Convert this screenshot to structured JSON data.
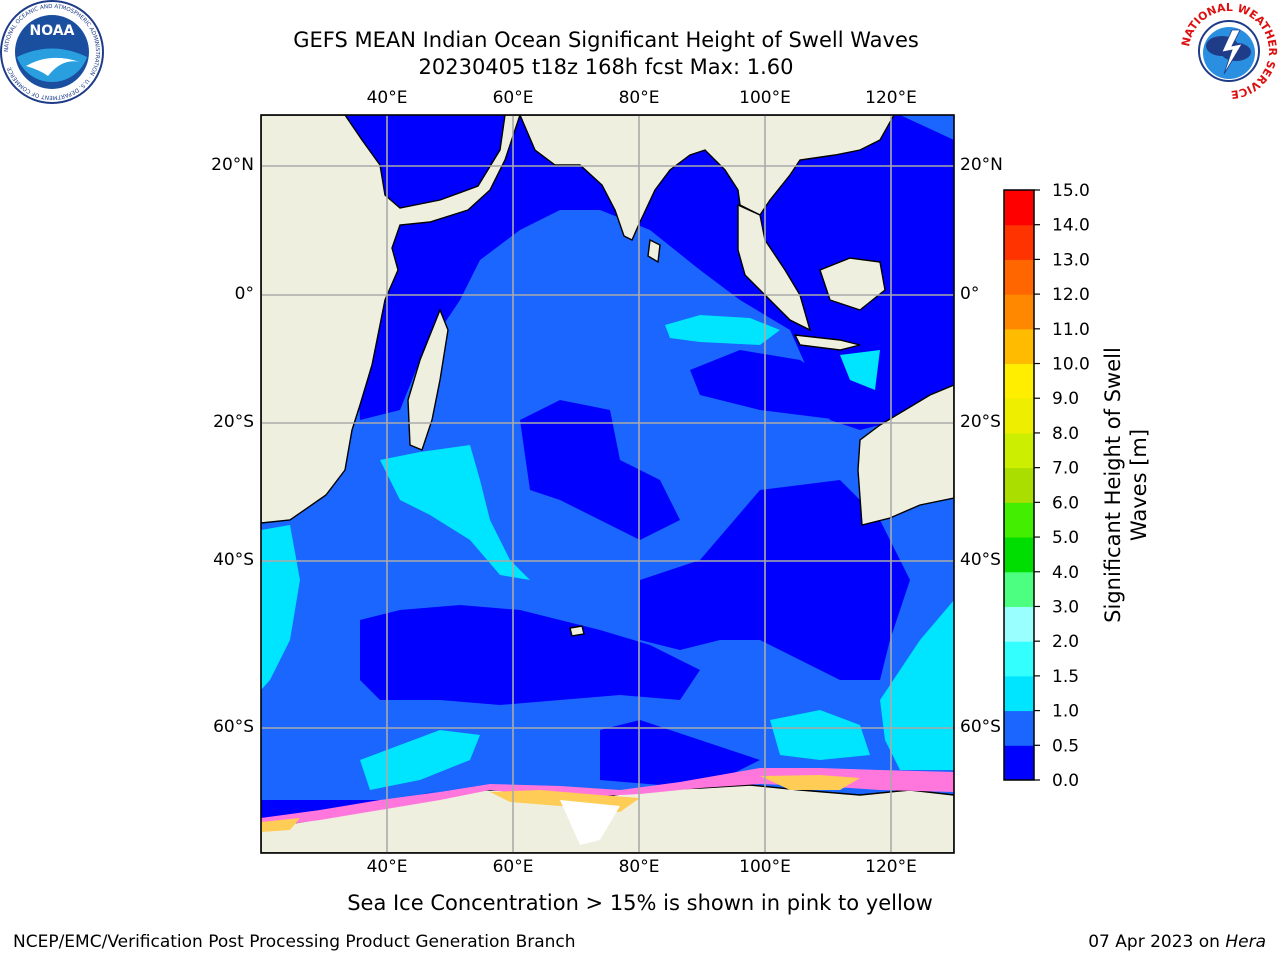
{
  "title_line1": "GEFS MEAN Indian Ocean Significant Height of Swell Waves",
  "title_line2": "20230405 t18z 168h fcst   Max: 1.60",
  "lon_labels": [
    "40°E",
    "60°E",
    "80°E",
    "100°E",
    "120°E"
  ],
  "lat_labels": [
    "20°N",
    "0°",
    "20°S",
    "40°S",
    "60°S"
  ],
  "map_extent": {
    "lon": [
      20,
      130
    ],
    "lat": [
      -74,
      28
    ]
  },
  "colorbar": {
    "label": "Significant Height of Swell Waves [m]",
    "ticks": [
      "0.0",
      "0.5",
      "1.0",
      "1.5",
      "2.0",
      "3.0",
      "4.0",
      "5.0",
      "6.0",
      "7.0",
      "8.0",
      "9.0",
      "10.0",
      "11.0",
      "12.0",
      "13.0",
      "14.0",
      "15.0"
    ],
    "colors": [
      "#0000ff",
      "#1a66ff",
      "#00e5ff",
      "#33ffff",
      "#99ffff",
      "#4dff80",
      "#00dd00",
      "#44ee00",
      "#aadd00",
      "#ccee00",
      "#eeee00",
      "#ffee00",
      "#ffbb00",
      "#ff8800",
      "#ff6600",
      "#ff3300",
      "#ff0000"
    ]
  },
  "colors": {
    "land": "#efefdf",
    "ocean_deep": "#0000ff",
    "ocean_mid": "#1a66ff",
    "ocean_light": "#33ffff",
    "ice_pink": "#ff77dd",
    "ice_yellow": "#ffcc55",
    "grid": "#aaaaaa"
  },
  "note": "Sea Ice Concentration > 15% is shown in pink to yellow",
  "footer_left": "NCEP/EMC/Verification Post Processing Product Generation Branch",
  "footer_date": "07 Apr 2023 on",
  "footer_machine": "Hera",
  "logos": {
    "noaa": {
      "name": "NOAA",
      "ring": "NATIONAL OCEANIC AND ATMOSPHERIC ADMINISTRATION · U.S. DEPARTMENT OF COMMERCE"
    },
    "nws": {
      "ring": "NATIONAL WEATHER SERVICE"
    }
  }
}
